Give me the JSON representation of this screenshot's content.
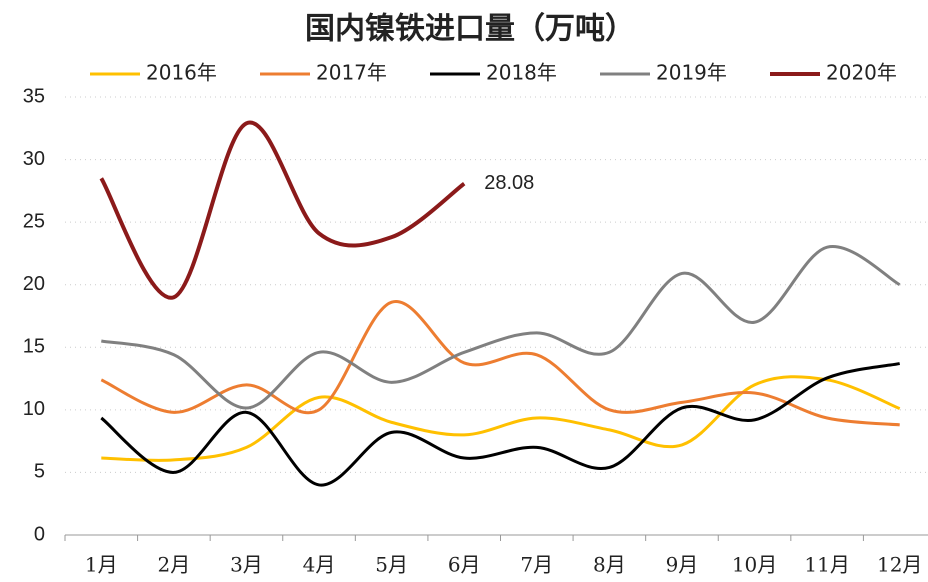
{
  "chart_data": {
    "type": "line",
    "title": "国内镍铁进口量（万吨）",
    "categories": [
      "1月",
      "2月",
      "3月",
      "4月",
      "5月",
      "6月",
      "7月",
      "8月",
      "9月",
      "10月",
      "11月",
      "12月"
    ],
    "series": [
      {
        "name": "2016年",
        "color": "#FFC000",
        "values": [
          6.15,
          6.0,
          7.0,
          11.0,
          9.0,
          8.0,
          9.35,
          8.4,
          7.2,
          12.0,
          12.4,
          10.1
        ]
      },
      {
        "name": "2017年",
        "color": "#ED7D31",
        "values": [
          12.4,
          9.8,
          12.0,
          10.0,
          18.6,
          13.75,
          14.4,
          10.0,
          10.6,
          11.35,
          9.35,
          8.8
        ]
      },
      {
        "name": "2018年",
        "color": "#000000",
        "values": [
          9.35,
          5.0,
          9.8,
          4.0,
          8.2,
          6.15,
          7.0,
          5.4,
          10.15,
          9.2,
          12.55,
          13.7
        ]
      },
      {
        "name": "2019年",
        "color": "#808080",
        "values": [
          15.5,
          14.4,
          10.15,
          14.6,
          12.2,
          14.6,
          16.15,
          14.6,
          20.9,
          17.0,
          23.0,
          20.0
        ]
      },
      {
        "name": "2020年",
        "color": "#8B1A1A",
        "values": [
          28.5,
          19.0,
          32.9,
          24.1,
          23.8,
          28.08,
          null,
          null,
          null,
          null,
          null,
          null
        ],
        "value_labels": [
          null,
          null,
          null,
          null,
          null,
          "28.08",
          null,
          null,
          null,
          null,
          null,
          null
        ]
      }
    ],
    "ylim": [
      0,
      35
    ],
    "yticks": [
      0,
      5,
      10,
      15,
      20,
      25,
      30,
      35
    ],
    "grid": true
  }
}
